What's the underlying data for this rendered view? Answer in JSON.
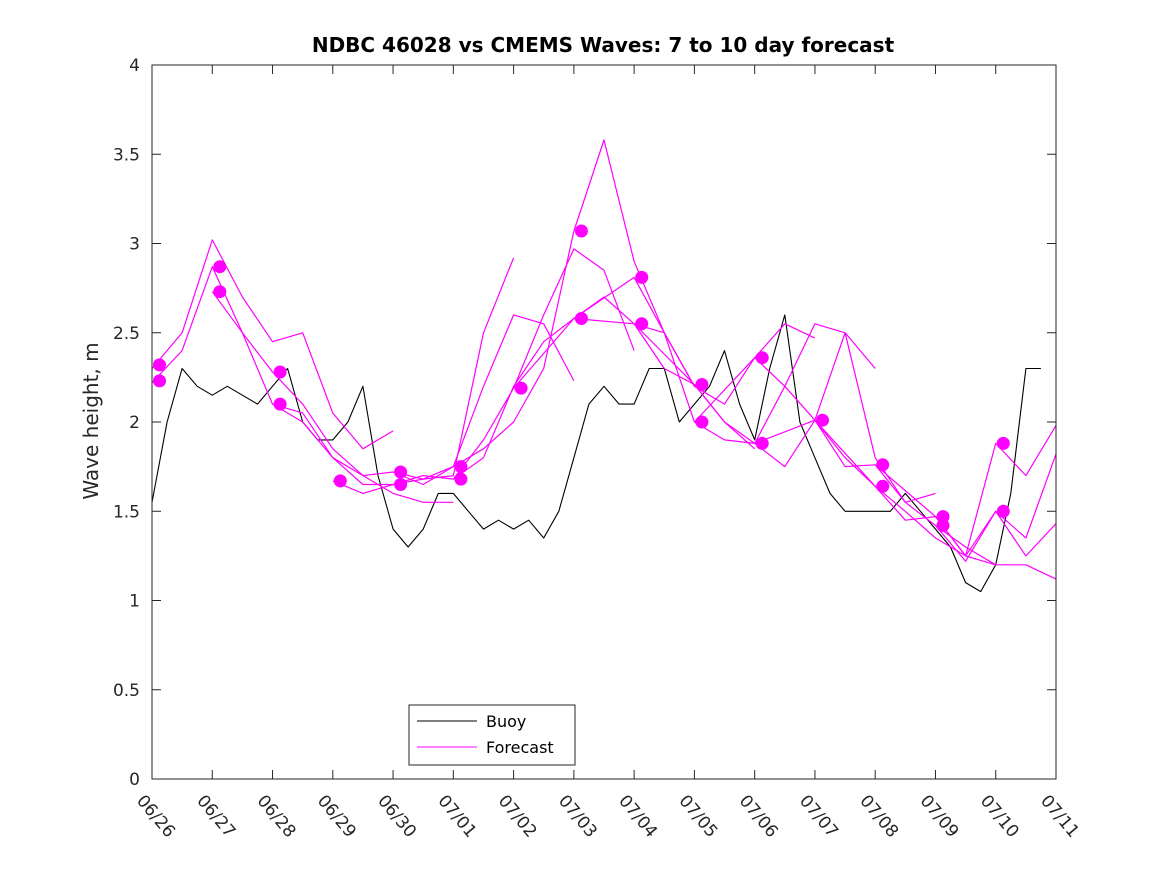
{
  "chart_data": {
    "type": "line",
    "title": "NDBC 46028 vs CMEMS Waves: 7 to 10 day forecast",
    "xlabel": "",
    "ylabel": "Wave height, m",
    "xlim": [
      "2024-06-26",
      "2024-07-11"
    ],
    "ylim": [
      0,
      4
    ],
    "xtick_labels": [
      "06/26",
      "06/27",
      "06/28",
      "06/29",
      "06/30",
      "07/01",
      "07/02",
      "07/03",
      "07/04",
      "07/05",
      "07/06",
      "07/07",
      "07/08",
      "07/09",
      "07/10",
      "07/11"
    ],
    "ytick_values": [
      0,
      0.5,
      1,
      1.5,
      2,
      2.5,
      3,
      3.5,
      4
    ],
    "ytick_labels": [
      "0",
      "0.5",
      "1",
      "1.5",
      "2",
      "2.5",
      "3",
      "3.5",
      "4"
    ],
    "grid": false,
    "legend": {
      "position": "bottom-center",
      "entries": [
        {
          "name": "Buoy",
          "color": "#000000"
        },
        {
          "name": "Forecast",
          "color": "#ff00ff"
        }
      ]
    },
    "colors": {
      "buoy": "#000000",
      "forecast": "#ff00ff"
    },
    "series": [
      {
        "name": "Buoy",
        "x": [
          "06/26 00:00",
          "06/26 06:00",
          "06/26 12:00",
          "06/26 18:00",
          "06/27 00:00",
          "06/27 06:00",
          "06/27 12:00",
          "06/27 18:00",
          "06/28 00:00",
          "06/28 06:00",
          "06/28 12:00",
          "06/28 18:00",
          "06/29 00:00",
          "06/29 06:00",
          "06/29 12:00",
          "06/29 18:00",
          "06/30 00:00",
          "06/30 06:00",
          "06/30 12:00",
          "06/30 18:00",
          "07/01 00:00",
          "07/01 06:00",
          "07/01 12:00",
          "07/01 18:00",
          "07/02 00:00",
          "07/02 06:00",
          "07/02 12:00",
          "07/02 18:00",
          "07/03 00:00",
          "07/03 06:00",
          "07/03 12:00",
          "07/03 18:00",
          "07/04 00:00",
          "07/04 06:00",
          "07/04 12:00",
          "07/04 18:00",
          "07/05 00:00",
          "07/05 06:00",
          "07/05 12:00",
          "07/05 18:00",
          "07/06 00:00",
          "07/06 06:00",
          "07/06 12:00",
          "07/06 18:00",
          "07/07 00:00",
          "07/07 06:00",
          "07/07 12:00",
          "07/07 18:00",
          "07/08 00:00",
          "07/08 06:00",
          "07/08 12:00",
          "07/08 18:00",
          "07/09 00:00",
          "07/09 06:00",
          "07/09 12:00",
          "07/09 18:00",
          "07/10 00:00",
          "07/10 06:00",
          "07/10 12:00",
          "07/10 18:00"
        ],
        "y": [
          1.55,
          2.0,
          2.3,
          2.2,
          2.15,
          2.2,
          2.15,
          2.1,
          2.2,
          2.3,
          2.0,
          1.9,
          1.9,
          2.0,
          2.2,
          1.7,
          1.4,
          1.3,
          1.4,
          1.6,
          1.6,
          1.5,
          1.4,
          1.45,
          1.4,
          1.45,
          1.35,
          1.5,
          1.8,
          2.1,
          2.2,
          2.1,
          2.1,
          2.3,
          2.3,
          2.0,
          2.1,
          2.2,
          2.4,
          2.1,
          1.9,
          2.3,
          2.6,
          2.0,
          1.8,
          1.6,
          1.5,
          1.5,
          1.5,
          1.5,
          1.6,
          1.5,
          1.4,
          1.3,
          1.1,
          1.05,
          1.2,
          1.6,
          2.3,
          2.3
        ]
      },
      {
        "name": "Forecast",
        "runs": [
          {
            "x": [
              "06/26 00:00",
              "06/26 12:00",
              "06/27 00:00",
              "06/27 12:00",
              "06/28 00:00",
              "06/28 12:00",
              "06/29 00:00",
              "06/29 12:00",
              "06/30 00:00"
            ],
            "y": [
              2.3,
              2.5,
              3.02,
              2.7,
              2.45,
              2.5,
              2.05,
              1.85,
              1.95
            ]
          },
          {
            "x": [
              "06/26 00:00",
              "06/26 12:00",
              "06/27 00:00",
              "06/27 12:00",
              "06/28 00:00",
              "06/28 12:00",
              "06/29 00:00",
              "06/29 12:00",
              "06/30 00:00",
              "06/30 12:00",
              "07/01 00:00"
            ],
            "y": [
              2.22,
              2.4,
              2.87,
              2.5,
              2.1,
              2.0,
              1.8,
              1.7,
              1.6,
              1.55,
              1.55
            ]
          },
          {
            "x": [
              "06/27 00:00",
              "06/27 12:00",
              "06/28 00:00",
              "06/28 12:00",
              "06/29 00:00",
              "06/29 12:00",
              "06/30 00:00",
              "06/30 12:00",
              "07/01 00:00",
              "07/01 12:00",
              "07/02 00:00"
            ],
            "y": [
              2.73,
              2.5,
              2.28,
              2.1,
              1.85,
              1.7,
              1.72,
              1.68,
              1.7,
              2.5,
              2.92
            ]
          },
          {
            "x": [
              "06/28 00:00",
              "06/28 12:00",
              "06/29 00:00",
              "06/29 12:00",
              "06/30 00:00",
              "06/30 12:00",
              "07/01 00:00",
              "07/01 12:00",
              "07/02 00:00",
              "07/02 12:00",
              "07/03 00:00"
            ],
            "y": [
              2.1,
              2.05,
              1.8,
              1.65,
              1.65,
              1.68,
              1.75,
              2.2,
              2.6,
              2.55,
              2.23
            ]
          },
          {
            "x": [
              "06/29 00:00",
              "06/29 12:00",
              "06/30 00:00",
              "06/30 12:00",
              "07/01 00:00",
              "07/01 12:00",
              "07/02 00:00",
              "07/02 12:00",
              "07/03 00:00",
              "07/03 12:00",
              "07/04 00:00"
            ],
            "y": [
              1.67,
              1.6,
              1.65,
              1.7,
              1.68,
              1.9,
              2.19,
              2.6,
              2.97,
              2.85,
              2.4
            ]
          },
          {
            "x": [
              "06/30 00:00",
              "06/30 12:00",
              "07/01 00:00",
              "07/01 12:00",
              "07/02 00:00",
              "07/02 12:00",
              "07/03 00:00",
              "07/03 12:00",
              "07/04 00:00",
              "07/04 12:00",
              "07/05 00:00"
            ],
            "y": [
              1.72,
              1.65,
              1.75,
              1.85,
              2.0,
              2.3,
              3.07,
              3.58,
              2.9,
              2.5,
              2.2
            ]
          },
          {
            "x": [
              "07/01 00:00",
              "07/01 12:00",
              "07/02 00:00",
              "07/02 12:00",
              "07/03 00:00",
              "07/03 12:00",
              "07/04 00:00",
              "07/04 12:00",
              "07/05 00:00",
              "07/05 12:00",
              "07/06 00:00"
            ],
            "y": [
              1.68,
              1.8,
              2.2,
              2.45,
              2.58,
              2.7,
              2.55,
              2.3,
              2.21,
              2.0,
              1.85
            ]
          },
          {
            "x": [
              "07/02 00:00",
              "07/03 00:00",
              "07/04 00:00",
              "07/04 12:00",
              "07/05 00:00",
              "07/05 12:00",
              "07/06 00:00",
              "07/06 12:00",
              "07/07 00:00"
            ],
            "y": [
              2.19,
              2.58,
              2.81,
              2.5,
              2.2,
              2.1,
              2.36,
              2.55,
              2.47
            ]
          },
          {
            "x": [
              "07/03 00:00",
              "07/04 00:00",
              "07/04 12:00",
              "07/05 00:00",
              "07/05 12:00",
              "07/06 00:00",
              "07/06 12:00",
              "07/07 00:00",
              "07/07 12:00",
              "07/08 00:00"
            ],
            "y": [
              2.58,
              2.55,
              2.5,
              2.0,
              1.9,
              1.88,
              2.2,
              2.55,
              2.5,
              2.3
            ]
          },
          {
            "x": [
              "07/04 00:00",
              "07/05 00:00",
              "07/05 12:00",
              "07/06 00:00",
              "07/06 12:00",
              "07/07 00:00",
              "07/07 12:00",
              "07/08 00:00",
              "07/08 12:00",
              "07/09 00:00"
            ],
            "y": [
              2.55,
              2.21,
              2.0,
              1.88,
              1.75,
              2.01,
              2.5,
              1.8,
              1.55,
              1.6
            ]
          },
          {
            "x": [
              "07/05 00:00",
              "07/06 00:00",
              "07/06 12:00",
              "07/07 00:00",
              "07/07 12:00",
              "07/08 00:00",
              "07/08 12:00",
              "07/09 00:00",
              "07/09 12:00",
              "07/10 00:00"
            ],
            "y": [
              2.0,
              2.36,
              2.2,
              2.01,
              1.8,
              1.64,
              1.5,
              1.35,
              1.25,
              1.2
            ]
          },
          {
            "x": [
              "07/06 00:00",
              "07/07 00:00",
              "07/07 12:00",
              "07/08 00:00",
              "07/08 12:00",
              "07/09 00:00",
              "07/09 12:00",
              "07/10 00:00",
              "07/10 12:00",
              "07/11 00:00"
            ],
            "y": [
              1.88,
              2.01,
              1.75,
              1.76,
              1.55,
              1.42,
              1.3,
              1.2,
              1.2,
              1.12
            ]
          },
          {
            "x": [
              "07/07 00:00",
              "07/08 00:00",
              "07/08 12:00",
              "07/09 00:00",
              "07/09 12:00",
              "07/10 00:00",
              "07/10 12:00",
              "07/11 00:00"
            ],
            "y": [
              2.01,
              1.64,
              1.45,
              1.47,
              1.25,
              1.5,
              1.25,
              1.43
            ]
          },
          {
            "x": [
              "07/08 00:00",
              "07/09 00:00",
              "07/09 12:00",
              "07/10 00:00",
              "07/10 12:00",
              "07/11 00:00"
            ],
            "y": [
              1.76,
              1.47,
              1.25,
              1.88,
              1.7,
              1.98
            ]
          },
          {
            "x": [
              "07/09 00:00",
              "07/09 12:00",
              "07/10 00:00",
              "07/10 12:00",
              "07/11 00:00"
            ],
            "y": [
              1.42,
              1.22,
              1.5,
              1.35,
              1.82
            ]
          }
        ]
      }
    ],
    "markers": {
      "x": [
        "06/26 03:00",
        "06/26 03:00",
        "06/27 03:00",
        "06/27 03:00",
        "06/28 03:00",
        "06/28 03:00",
        "06/29 03:00",
        "06/30 03:00",
        "06/30 03:00",
        "07/01 03:00",
        "07/01 03:00",
        "07/02 03:00",
        "07/03 03:00",
        "07/03 03:00",
        "07/04 03:00",
        "07/04 03:00",
        "07/05 03:00",
        "07/05 03:00",
        "07/06 03:00",
        "07/06 03:00",
        "07/07 03:00",
        "07/08 03:00",
        "07/08 03:00",
        "07/09 03:00",
        "07/09 03:00",
        "07/10 03:00",
        "07/10 03:00"
      ],
      "y": [
        2.32,
        2.23,
        2.87,
        2.73,
        2.28,
        2.1,
        1.67,
        1.72,
        1.65,
        1.75,
        1.68,
        2.19,
        3.07,
        2.58,
        2.81,
        2.55,
        2.21,
        2.0,
        2.36,
        1.88,
        2.01,
        1.76,
        1.64,
        1.47,
        1.42,
        1.88,
        1.5
      ]
    }
  }
}
